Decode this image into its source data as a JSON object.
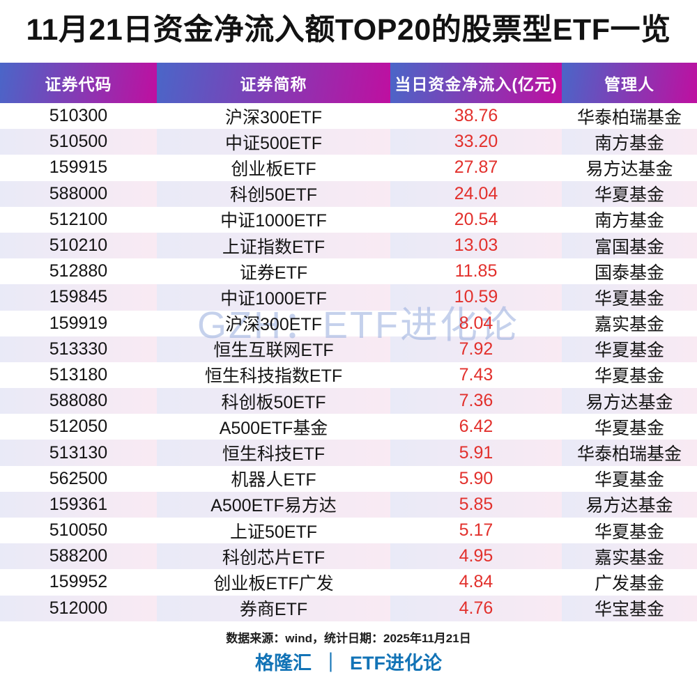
{
  "title": "11月21日资金净流入额TOP20的股票型ETF一览",
  "watermark": "GZH：ETF进化论",
  "chart_data": {
    "type": "table",
    "title": "11月21日资金净流入额TOP20的股票型ETF一览",
    "columns": [
      "证券代码",
      "证券简称",
      "当日资金净流入(亿元)",
      "管理人"
    ],
    "rows": [
      {
        "code": "510300",
        "name": "沪深300ETF",
        "inflow": "38.76",
        "manager": "华泰柏瑞基金"
      },
      {
        "code": "510500",
        "name": "中证500ETF",
        "inflow": "33.20",
        "manager": "南方基金"
      },
      {
        "code": "159915",
        "name": "创业板ETF",
        "inflow": "27.87",
        "manager": "易方达基金"
      },
      {
        "code": "588000",
        "name": "科创50ETF",
        "inflow": "24.04",
        "manager": "华夏基金"
      },
      {
        "code": "512100",
        "name": "中证1000ETF",
        "inflow": "20.54",
        "manager": "南方基金"
      },
      {
        "code": "510210",
        "name": "上证指数ETF",
        "inflow": "13.03",
        "manager": "富国基金"
      },
      {
        "code": "512880",
        "name": "证券ETF",
        "inflow": "11.85",
        "manager": "国泰基金"
      },
      {
        "code": "159845",
        "name": "中证1000ETF",
        "inflow": "10.59",
        "manager": "华夏基金"
      },
      {
        "code": "159919",
        "name": "沪深300ETF",
        "inflow": "8.04",
        "manager": "嘉实基金"
      },
      {
        "code": "513330",
        "name": "恒生互联网ETF",
        "inflow": "7.92",
        "manager": "华夏基金"
      },
      {
        "code": "513180",
        "name": "恒生科技指数ETF",
        "inflow": "7.43",
        "manager": "华夏基金"
      },
      {
        "code": "588080",
        "name": "科创板50ETF",
        "inflow": "7.36",
        "manager": "易方达基金"
      },
      {
        "code": "512050",
        "name": "A500ETF基金",
        "inflow": "6.42",
        "manager": "华夏基金"
      },
      {
        "code": "513130",
        "name": "恒生科技ETF",
        "inflow": "5.91",
        "manager": "华泰柏瑞基金"
      },
      {
        "code": "562500",
        "name": "机器人ETF",
        "inflow": "5.90",
        "manager": "华夏基金"
      },
      {
        "code": "159361",
        "name": "A500ETF易方达",
        "inflow": "5.85",
        "manager": "易方达基金"
      },
      {
        "code": "510050",
        "name": "上证50ETF",
        "inflow": "5.17",
        "manager": "华夏基金"
      },
      {
        "code": "588200",
        "name": "科创芯片ETF",
        "inflow": "4.95",
        "manager": "嘉实基金"
      },
      {
        "code": "159952",
        "name": "创业板ETF广发",
        "inflow": "4.84",
        "manager": "广发基金"
      },
      {
        "code": "512000",
        "name": "券商ETF",
        "inflow": "4.76",
        "manager": "华宝基金"
      }
    ]
  },
  "footer": {
    "source": "数据来源：wind，统计日期：2025年11月21日",
    "brand_left": "格隆汇",
    "brand_divider": "｜",
    "brand_right": "ETF进化论"
  },
  "colors": {
    "header_gradient_from": "#4a66c8",
    "header_gradient_to": "#bf0fa0",
    "row_shade_from": "#e9eaf7",
    "row_shade_to": "#f9eaf3",
    "value_red": "#e2302c",
    "brand_blue": "#1273b6",
    "watermark_blue": "#96acdc",
    "title_black": "#121212"
  }
}
